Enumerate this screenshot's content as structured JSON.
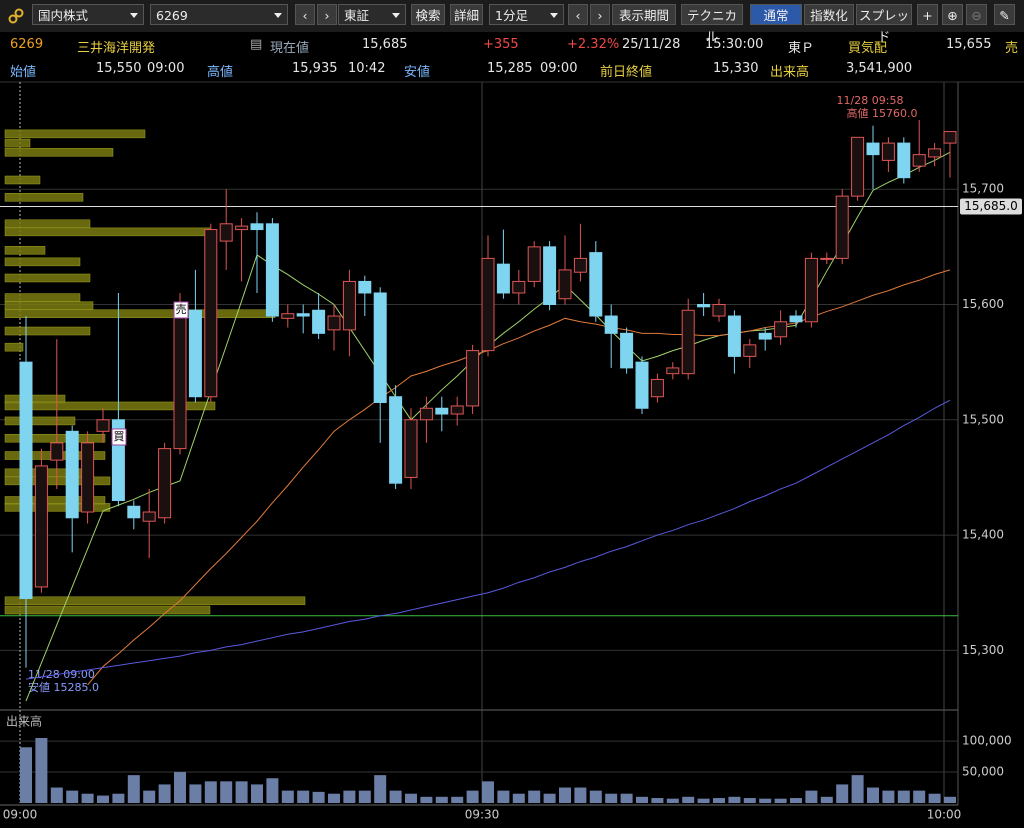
{
  "toolbar": {
    "market": "国内株式",
    "code": "6269",
    "exchange": "東証",
    "search": "検索",
    "detail": "詳細",
    "interval": "1分足",
    "period": "表示期間",
    "technical": "テクニカル",
    "normal": "通常",
    "index": "指数化",
    "spread": "スプレッド"
  },
  "quote": {
    "code": "6269",
    "name": "三井海洋開発",
    "current_label": "現在値",
    "current": "15,685",
    "change": "+355",
    "change_pct": "+2.32%",
    "date": "25/11/28",
    "time": "15:30:00",
    "market": "東Ｐ",
    "bid_label": "買気配",
    "bid": "15,655",
    "ask_label": "売",
    "open_label": "始値",
    "open": "15,550",
    "open_time": "09:00",
    "high_label": "高値",
    "high": "15,935",
    "high_time": "10:42",
    "low_label": "安値",
    "low": "15,285",
    "low_time": "09:00",
    "prev_close_label": "前日終値",
    "prev_close": "15,330",
    "volume_label": "出来高",
    "volume": "3,541,900"
  },
  "chart_data": {
    "type": "candlestick",
    "categories": [
      "09:00",
      null,
      null,
      null,
      null,
      null,
      null,
      null,
      null,
      null,
      null,
      null,
      null,
      null,
      null,
      null,
      null,
      null,
      null,
      null,
      null,
      null,
      null,
      null,
      null,
      null,
      null,
      null,
      null,
      null,
      "09:30",
      null,
      null,
      null,
      null,
      null,
      null,
      null,
      null,
      null,
      null,
      null,
      null,
      null,
      null,
      null,
      null,
      null,
      null,
      null,
      null,
      null,
      null,
      null,
      null,
      null,
      null,
      null,
      null,
      null,
      "10:00"
    ],
    "open": [
      15550,
      15355,
      15465,
      15490,
      15420,
      15490,
      15500,
      15425,
      15412,
      15415,
      15475,
      15595,
      15520,
      15655,
      15665,
      15670,
      15670,
      15588,
      15592,
      15595,
      15578,
      15578,
      15620,
      15610,
      15520,
      15450,
      15500,
      15510,
      15505,
      15512,
      15560,
      15635,
      15610,
      15620,
      15650,
      15605,
      15628,
      15645,
      15590,
      15575,
      15550,
      15520,
      15540,
      15540,
      15600,
      15590,
      15590,
      15555,
      15575,
      15572,
      15590,
      15585,
      15640,
      15640,
      15694,
      15740,
      15725,
      15740,
      15720,
      15728,
      15740
    ],
    "high": [
      15590,
      15475,
      15570,
      15495,
      15490,
      15510,
      15610,
      15430,
      15440,
      15480,
      15610,
      15630,
      15670,
      15700,
      15675,
      15680,
      15675,
      15600,
      15600,
      15610,
      15600,
      15630,
      15625,
      15615,
      15530,
      15510,
      15520,
      15520,
      15520,
      15565,
      15660,
      15665,
      15630,
      15655,
      15655,
      15660,
      15670,
      15655,
      15600,
      15580,
      15555,
      15540,
      15550,
      15605,
      15610,
      15605,
      15595,
      15570,
      15580,
      15595,
      15595,
      15645,
      15645,
      15700,
      15745,
      15755,
      15745,
      15745,
      15760,
      15740,
      15750
    ],
    "low": [
      15285,
      15350,
      15440,
      15385,
      15410,
      15480,
      15425,
      15405,
      15380,
      15410,
      15470,
      15515,
      15515,
      15630,
      15620,
      15610,
      15585,
      15580,
      15575,
      15570,
      15560,
      15555,
      15590,
      15480,
      15440,
      15440,
      15480,
      15490,
      15495,
      15505,
      15555,
      15605,
      15600,
      15615,
      15595,
      15600,
      15620,
      15585,
      15545,
      15540,
      15505,
      15515,
      15535,
      15535,
      15590,
      15585,
      15540,
      15545,
      15560,
      15565,
      15580,
      15580,
      15635,
      15635,
      15690,
      15700,
      15715,
      15705,
      15715,
      15720,
      15710
    ],
    "close": [
      15345,
      15460,
      15480,
      15415,
      15480,
      15500,
      15430,
      15415,
      15420,
      15475,
      15595,
      15520,
      15665,
      15670,
      15668,
      15665,
      15590,
      15592,
      15590,
      15575,
      15590,
      15620,
      15610,
      15515,
      15445,
      15500,
      15510,
      15505,
      15512,
      15560,
      15640,
      15610,
      15620,
      15650,
      15600,
      15630,
      15640,
      15590,
      15575,
      15545,
      15510,
      15535,
      15545,
      15595,
      15598,
      15600,
      15555,
      15565,
      15570,
      15585,
      15585,
      15640,
      15640,
      15694,
      15745,
      15730,
      15740,
      15710,
      15730,
      15735,
      15750
    ],
    "moving_averages": [
      {
        "color": "#9fd36a",
        "values": [
          15256,
          15289,
          15322,
          15355,
          15388,
          15421,
          15426,
          15431,
          15437,
          15442,
          15447,
          15486,
          15525,
          15564,
          15603,
          15643,
          15634,
          15626,
          15617,
          15609,
          15600,
          15580,
          15560,
          15540,
          15520,
          15500,
          15513,
          15526,
          15538,
          15551,
          15564,
          15575,
          15585,
          15596,
          15606,
          15617,
          15604,
          15591,
          15577,
          15564,
          15551,
          15555,
          15560,
          15564,
          15569,
          15573,
          15575,
          15577,
          15578,
          15580,
          15582,
          15605,
          15629,
          15652,
          15676,
          15699,
          15706,
          15712,
          15719,
          15725,
          15732
        ]
      },
      {
        "color": "#e07a3a",
        "values": [
          null,
          null,
          null,
          null,
          15270,
          15286,
          15297,
          15309,
          15320,
          15332,
          15343,
          15357,
          15371,
          15384,
          15398,
          15412,
          15428,
          15443,
          15459,
          15474,
          15490,
          15500,
          15509,
          15519,
          15528,
          15538,
          15542,
          15547,
          15551,
          15556,
          15560,
          15566,
          15571,
          15577,
          15582,
          15588,
          15585,
          15583,
          15580,
          15578,
          15575,
          15575,
          15574,
          15574,
          15573,
          15573,
          15575,
          15577,
          15580,
          15582,
          15584,
          15589,
          15594,
          15598,
          15603,
          15608,
          15612,
          15617,
          15621,
          15626,
          15630
        ]
      },
      {
        "color": "#5a5ae0",
        "values": [
          15275,
          15277,
          15279,
          15281,
          15283,
          15285,
          15287,
          15289,
          15291,
          15293,
          15295,
          15298,
          15300,
          15303,
          15305,
          15308,
          15311,
          15314,
          15316,
          15319,
          15322,
          15325,
          15327,
          15330,
          15332,
          15335,
          15338,
          15341,
          15344,
          15347,
          15350,
          15354,
          15359,
          15363,
          15368,
          15372,
          15377,
          15381,
          15386,
          15390,
          15395,
          15400,
          15404,
          15409,
          15413,
          15418,
          15423,
          15429,
          15434,
          15440,
          15445,
          15452,
          15459,
          15466,
          15473,
          15480,
          15487,
          15495,
          15502,
          15510,
          15517
        ]
      }
    ],
    "up_color": "#e05555",
    "down_color": "#7fd4f0",
    "ylim": [
      15250,
      15793
    ],
    "yticks": [
      {
        "value": 15300,
        "label": "15,300"
      },
      {
        "value": 15400,
        "label": "15,400"
      },
      {
        "value": 15500,
        "label": "15,500"
      },
      {
        "value": 15600,
        "label": "15,600"
      },
      {
        "value": 15700,
        "label": "15,700"
      }
    ],
    "last_price": {
      "value": 15685,
      "label": "15,685.0"
    },
    "prev_close_line": 15330,
    "volume_profile": {
      "color": "#7a7a10",
      "prices": [
        15748,
        15740,
        15732,
        15708,
        15693,
        15670,
        15663,
        15647,
        15637,
        15623,
        15606,
        15599,
        15592,
        15577,
        15563,
        15518,
        15512,
        15499,
        15484,
        15469,
        15454,
        15447,
        15430,
        15424,
        15343,
        15335
      ],
      "values": [
        28000,
        5000,
        21600,
        7000,
        15600,
        17000,
        41000,
        8000,
        15000,
        17000,
        15000,
        17600,
        54000,
        17000,
        3600,
        12000,
        42000,
        14000,
        20000,
        20000,
        17000,
        21000,
        20000,
        21000,
        60000,
        41000
      ]
    },
    "high_note": {
      "time": "11/28 09:58",
      "text": "高値 15760.0"
    },
    "low_note": {
      "time": "11/28 09:00",
      "text": "安値 15285.0"
    },
    "sell_mark": "売",
    "buy_mark": "買",
    "volume_title": "出来高",
    "volume_values": [
      90000,
      105000,
      25000,
      20000,
      15000,
      12000,
      15000,
      45000,
      20000,
      30000,
      50000,
      30000,
      35000,
      35000,
      35000,
      30000,
      40000,
      20000,
      20000,
      18000,
      15000,
      20000,
      20000,
      45000,
      20000,
      15000,
      10000,
      10000,
      10000,
      20000,
      35000,
      20000,
      15000,
      20000,
      15000,
      25000,
      25000,
      20000,
      15000,
      15000,
      10000,
      8000,
      7000,
      10000,
      7000,
      8000,
      10000,
      8000,
      7000,
      7000,
      8000,
      20000,
      10000,
      30000,
      45000,
      25000,
      20000,
      20000,
      20000,
      15000,
      10000
    ],
    "volume_color": "#6a7ea6",
    "volume_ylim": [
      0,
      147000
    ],
    "volume_yticks": [
      {
        "value": 50000,
        "label": "50,000"
      },
      {
        "value": 100000,
        "label": "100,000"
      }
    ]
  }
}
